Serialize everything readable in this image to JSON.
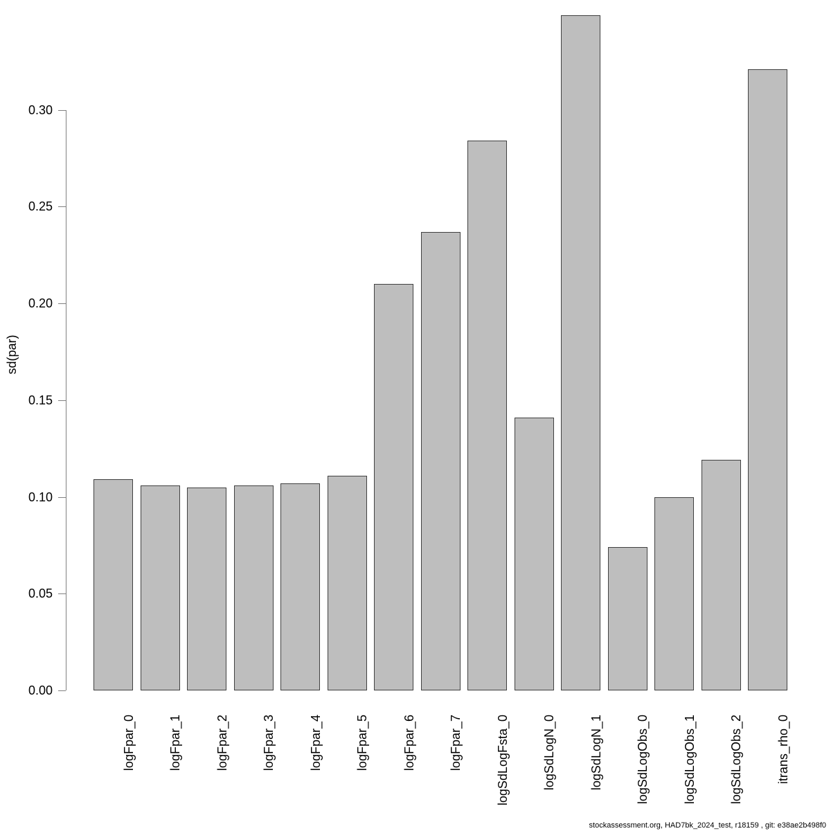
{
  "chart_data": {
    "type": "bar",
    "title": "",
    "xlabel": "",
    "ylabel": "sd(par)",
    "categories": [
      "logFpar_0",
      "logFpar_1",
      "logFpar_2",
      "logFpar_3",
      "logFpar_4",
      "logFpar_5",
      "logFpar_6",
      "logFpar_7",
      "logSdLogFsta_0",
      "logSdLogN_0",
      "logSdLogN_1",
      "logSdLogObs_0",
      "logSdLogObs_1",
      "logSdLogObs_2",
      "itrans_rho_0"
    ],
    "values": [
      0.109,
      0.106,
      0.105,
      0.106,
      0.107,
      0.111,
      0.21,
      0.237,
      0.284,
      0.141,
      0.349,
      0.074,
      0.1,
      0.119,
      0.321
    ],
    "yticks": [
      0.0,
      0.05,
      0.1,
      0.15,
      0.2,
      0.25,
      0.3
    ],
    "ytick_labels": [
      "0.00",
      "0.05",
      "0.10",
      "0.15",
      "0.20",
      "0.25",
      "0.30"
    ],
    "ylim": [
      0,
      0.349
    ],
    "grid": false,
    "legend": false,
    "bar_fill_color": "#bebebe",
    "bar_border_color": "#404040",
    "axis_color": "#808080",
    "text_color": "#000000",
    "footer": "stockassessment.org, HAD7bk_2024_test, r18159 , git: e38ae2b498f0"
  }
}
